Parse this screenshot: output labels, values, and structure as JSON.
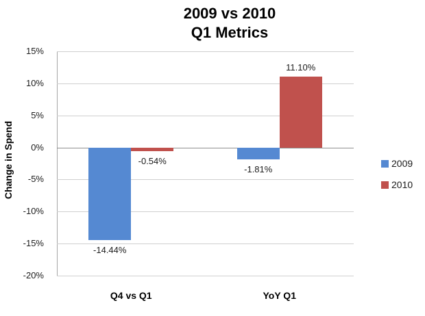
{
  "chart_data": {
    "type": "bar",
    "title_lines": [
      "2009 vs 2010",
      "Q1 Metrics"
    ],
    "ylabel": "Change in Spend",
    "xlabel": "",
    "categories": [
      "Q4 vs Q1",
      "YoY Q1"
    ],
    "series": [
      {
        "name": "2009",
        "color": "#5589D2",
        "values": [
          -14.44,
          -1.81
        ],
        "value_labels": [
          "-14.44%",
          "-1.81%"
        ]
      },
      {
        "name": "2010",
        "color": "#C0514D",
        "values": [
          -0.54,
          11.1
        ],
        "value_labels": [
          "-0.54%",
          "11.10%"
        ]
      }
    ],
    "ylim": [
      -20,
      15
    ],
    "y_tick_values": [
      15,
      10,
      5,
      0,
      -5,
      -10,
      -15,
      -20
    ],
    "y_tick_labels": [
      "15%",
      "10%",
      "5%",
      "0%",
      "-5%",
      "-10%",
      "-15%",
      "-20%"
    ],
    "grid": true,
    "legend_position": "right"
  },
  "colors": {
    "gridline": "#CFCFCF",
    "axis_line": "#A6A6A6",
    "zero_line": "#8C8C8C",
    "background": "#FFFFFF",
    "text": "#000000"
  }
}
